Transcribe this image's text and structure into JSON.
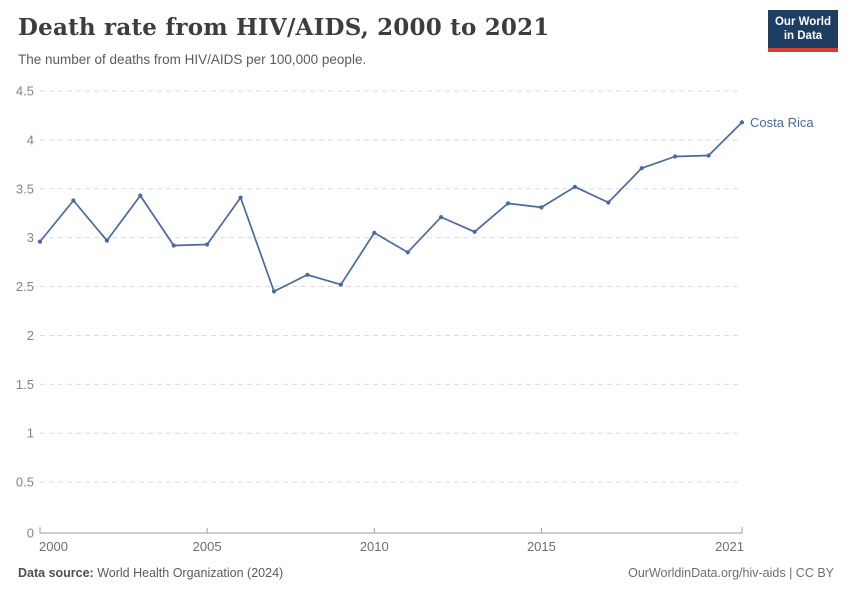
{
  "header": {
    "title": "Death rate from HIV/AIDS, 2000 to 2021",
    "subtitle": "The number of deaths from HIV/AIDS per 100,000 people.",
    "logo": {
      "line1": "Our World",
      "line2": "in Data",
      "bg_color": "#1d3d63",
      "stripe_color": "#d93a34"
    }
  },
  "chart_data": {
    "type": "line",
    "title": "Death rate from HIV/AIDS, 2000 to 2021",
    "xlabel": "",
    "ylabel": "",
    "xlim": [
      2000,
      2021
    ],
    "ylim": [
      0,
      4.5
    ],
    "x_ticks": [
      2000,
      2005,
      2010,
      2015,
      2021
    ],
    "y_ticks": [
      0,
      0.5,
      1,
      1.5,
      2,
      2.5,
      3,
      3.5,
      4,
      4.5
    ],
    "grid": "horizontal-dashed",
    "legend_position": "end-of-line",
    "x": [
      2000,
      2001,
      2002,
      2003,
      2004,
      2005,
      2006,
      2007,
      2008,
      2009,
      2010,
      2011,
      2012,
      2013,
      2014,
      2015,
      2016,
      2017,
      2018,
      2019,
      2020,
      2021
    ],
    "series": [
      {
        "name": "Costa Rica",
        "color": "#4a69a2",
        "values": [
          2.96,
          3.38,
          2.97,
          3.43,
          2.92,
          2.93,
          3.41,
          2.45,
          2.62,
          2.52,
          3.05,
          2.85,
          3.21,
          3.06,
          3.35,
          3.31,
          3.52,
          3.36,
          3.71,
          3.83,
          3.84,
          4.18
        ]
      }
    ]
  },
  "footer": {
    "source_label": "Data source:",
    "source_text": " World Health Organization (2024)",
    "credit": "OurWorldinData.org/hiv-aids | CC BY"
  }
}
